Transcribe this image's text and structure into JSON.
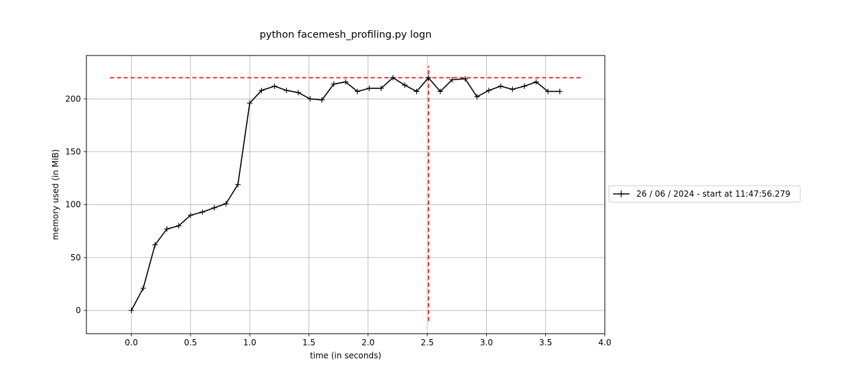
{
  "chart_data": {
    "type": "line",
    "title": "python facemesh_profiling.py logn",
    "xlabel": "time (in seconds)",
    "ylabel": "memory used (in MiB)",
    "xlim": [
      -0.38,
      4.0
    ],
    "ylim": [
      -22,
      241
    ],
    "xticks": [
      0.0,
      0.5,
      1.0,
      1.5,
      2.0,
      2.5,
      3.0,
      3.5,
      4.0
    ],
    "xtick_labels": [
      "0.0",
      "0.5",
      "1.0",
      "1.5",
      "2.0",
      "2.5",
      "3.0",
      "3.5",
      "4.0"
    ],
    "yticks": [
      0,
      50,
      100,
      150,
      200
    ],
    "ytick_labels": [
      "0",
      "50",
      "100",
      "150",
      "200"
    ],
    "grid": true,
    "legend_position": "outside-right",
    "series": [
      {
        "name": "26 / 06 / 2024 - start at 11:47:56.279",
        "color": "#000000",
        "marker": "+",
        "x": [
          0.0,
          0.1,
          0.2,
          0.3,
          0.4,
          0.5,
          0.6,
          0.7,
          0.8,
          0.9,
          1.0,
          1.1,
          1.21,
          1.31,
          1.41,
          1.51,
          1.61,
          1.71,
          1.81,
          1.91,
          2.01,
          2.11,
          2.21,
          2.31,
          2.41,
          2.51,
          2.61,
          2.71,
          2.82,
          2.92,
          3.02,
          3.12,
          3.22,
          3.32,
          3.42,
          3.52,
          3.62
        ],
        "y": [
          0,
          21,
          62,
          77,
          80,
          90,
          93,
          97,
          101,
          119,
          196,
          208,
          212,
          208,
          206,
          200,
          199,
          214,
          216,
          207,
          210,
          210,
          220,
          213,
          207,
          220,
          207,
          218,
          219,
          202,
          208,
          212,
          209,
          212,
          216,
          207,
          207
        ]
      }
    ],
    "annotations": [
      {
        "type": "hline",
        "y": 220,
        "xmin": -0.18,
        "xmax": 3.8,
        "color": "#ff0000",
        "style": "dashed"
      },
      {
        "type": "vline",
        "x": 2.51,
        "ymin": -10,
        "ymax": 231,
        "color": "#ff0000",
        "style": "dashed"
      }
    ]
  }
}
